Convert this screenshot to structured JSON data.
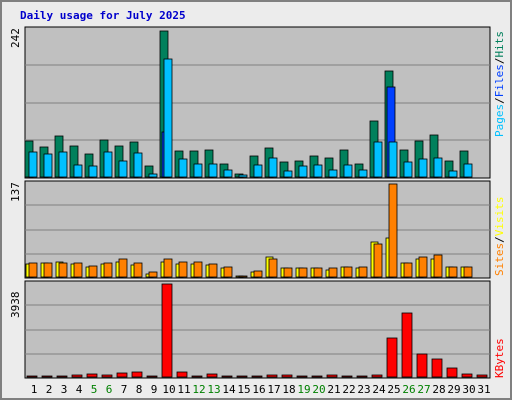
{
  "chart_data": {
    "type": "bar",
    "title": "Daily usage for July 2025",
    "colors": {
      "background": "#ececec",
      "panel": "#c0c0c0",
      "title": "#0000cc",
      "hits": "#00805c",
      "files": "#0040ff",
      "pages": "#00c0ff",
      "visits": "#ffff00",
      "sites": "#ff8000",
      "kbytes": "#ff0000",
      "weekend_label": "#008000",
      "weekday_label": "#000000"
    },
    "legends": {
      "top": [
        "Pages",
        "/",
        "Files",
        "/",
        "Hits"
      ],
      "mid": [
        "Sites",
        "/",
        "Visits"
      ],
      "bot": [
        "KBytes"
      ]
    },
    "day_labels": [
      "1",
      "2",
      "3",
      "4",
      "5",
      "6",
      "7",
      "8",
      "9",
      "10",
      "11",
      "12",
      "13",
      "14",
      "15",
      "16",
      "17",
      "18",
      "19",
      "20",
      "21",
      "22",
      "23",
      "24",
      "25",
      "26",
      "27",
      "28",
      "29",
      "30",
      "31"
    ],
    "weekend_days": [
      5,
      6,
      12,
      13,
      19,
      20,
      26,
      27
    ],
    "top": {
      "max_label": "242",
      "ylim": [
        0,
        242
      ],
      "series": [
        {
          "name": "Hits",
          "values": [
            60,
            50,
            68,
            52,
            38,
            62,
            52,
            58,
            18,
            242,
            43,
            43,
            45,
            22,
            5,
            35,
            48,
            25,
            27,
            35,
            32,
            45,
            22,
            93,
            176,
            45,
            60,
            70,
            26,
            43,
            0
          ]
        },
        {
          "name": "Files",
          "values": [
            0,
            0,
            0,
            0,
            0,
            0,
            0,
            0,
            0,
            75,
            0,
            0,
            0,
            0,
            0,
            0,
            0,
            0,
            0,
            0,
            0,
            0,
            0,
            0,
            150,
            0,
            0,
            0,
            0,
            0,
            0
          ]
        },
        {
          "name": "Pages",
          "values": [
            42,
            38,
            42,
            20,
            18,
            42,
            26,
            40,
            5,
            195,
            30,
            22,
            22,
            12,
            4,
            20,
            32,
            10,
            18,
            20,
            12,
            20,
            12,
            58,
            58,
            25,
            30,
            32,
            10,
            22,
            0
          ]
        }
      ]
    },
    "mid": {
      "max_label": "137",
      "ylim": [
        0,
        137
      ],
      "series": [
        {
          "name": "Visits",
          "values": [
            19,
            20,
            22,
            19,
            15,
            19,
            22,
            17,
            4,
            22,
            19,
            19,
            18,
            13,
            2,
            8,
            30,
            13,
            13,
            13,
            10,
            15,
            13,
            52,
            58,
            20,
            26,
            26,
            15,
            15,
            0
          ]
        },
        {
          "name": "Sites",
          "values": [
            20,
            21,
            21,
            20,
            16,
            21,
            26,
            20,
            7,
            26,
            22,
            22,
            19,
            14,
            2,
            9,
            26,
            13,
            13,
            13,
            13,
            15,
            15,
            49,
            137,
            20,
            30,
            32,
            14,
            15,
            0
          ]
        }
      ]
    },
    "bot": {
      "max_label": "3938",
      "ylim": [
        0,
        3938
      ],
      "series": [
        {
          "name": "KBytes",
          "values": [
            60,
            60,
            60,
            90,
            120,
            80,
            180,
            210,
            5,
            3938,
            220,
            40,
            110,
            20,
            20,
            20,
            100,
            100,
            40,
            40,
            90,
            50,
            30,
            80,
            1650,
            2730,
            970,
            780,
            400,
            130,
            100
          ]
        }
      ]
    }
  }
}
